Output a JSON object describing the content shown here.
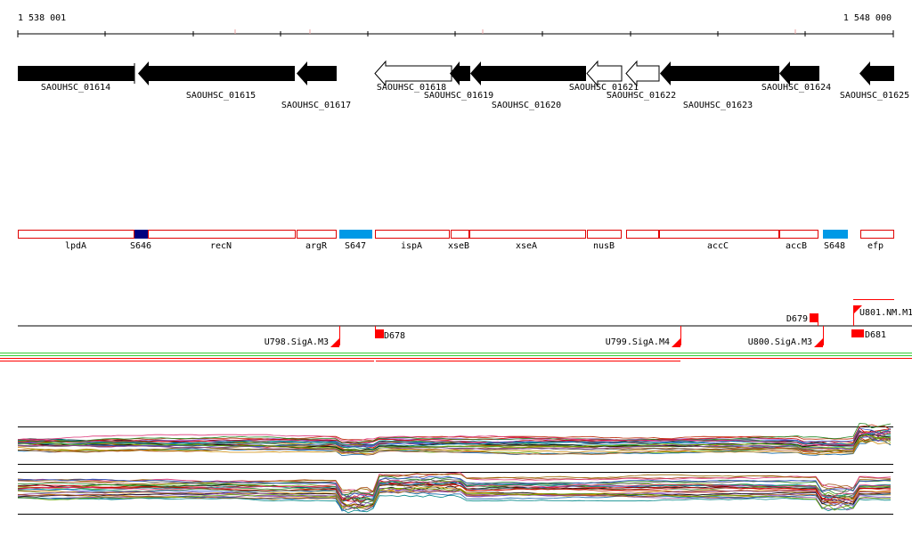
{
  "ruler": {
    "start_label": "1 538 001",
    "end_label": "1 548 000"
  },
  "colors": {
    "gene_fill": "#000000",
    "gene_open_fill": "#ffffff",
    "operon_stroke": "#e00000",
    "s_dark": "#000080",
    "s_light": "#0099e6",
    "promoter": "#ff0000",
    "green_track": "#33cc33"
  },
  "genes": [
    {
      "label": "SAOUHSC_01614",
      "dir": "+",
      "open": false
    },
    {
      "label": "SAOUHSC_01615",
      "dir": "-",
      "open": false
    },
    {
      "label": "SAOUHSC_01617",
      "dir": "-",
      "open": false
    },
    {
      "label": "SAOUHSC_01618",
      "dir": "-",
      "open": true
    },
    {
      "label": "SAOUHSC_01619",
      "dir": "-",
      "open": false
    },
    {
      "label": "SAOUHSC_01620",
      "dir": "-",
      "open": false
    },
    {
      "label": "SAOUHSC_01621",
      "dir": "-",
      "open": true
    },
    {
      "label": "SAOUHSC_01622",
      "dir": "-",
      "open": true
    },
    {
      "label": "SAOUHSC_01623",
      "dir": "-",
      "open": false
    },
    {
      "label": "SAOUHSC_01624",
      "dir": "-",
      "open": false
    },
    {
      "label": "SAOUHSC_01625",
      "dir": "-",
      "open": false
    }
  ],
  "features": [
    {
      "label": "lpdA",
      "kind": "operon"
    },
    {
      "label": "S646",
      "kind": "s-dark"
    },
    {
      "label": "recN",
      "kind": "operon"
    },
    {
      "label": "argR",
      "kind": "operon"
    },
    {
      "label": "S647",
      "kind": "s-light"
    },
    {
      "label": "ispA",
      "kind": "operon"
    },
    {
      "label": "xseB",
      "kind": "operon"
    },
    {
      "label": "xseA",
      "kind": "operon"
    },
    {
      "label": "nusB",
      "kind": "operon"
    },
    {
      "label": "",
      "kind": "operon"
    },
    {
      "label": "accC",
      "kind": "operon"
    },
    {
      "label": "accB",
      "kind": "operon"
    },
    {
      "label": "S648",
      "kind": "s-light"
    },
    {
      "label": "efp",
      "kind": "operon"
    }
  ],
  "regulatory": [
    {
      "label": "U798.SigA.M3",
      "kind": "promoter"
    },
    {
      "label": "D678",
      "kind": "box"
    },
    {
      "label": "U799.SigA.M4",
      "kind": "promoter"
    },
    {
      "label": "U800.SigA.M3",
      "kind": "promoter"
    },
    {
      "label": "D679",
      "kind": "box"
    },
    {
      "label": "U801.NM.M1",
      "kind": "promoter"
    },
    {
      "label": "D681",
      "kind": "box"
    }
  ]
}
